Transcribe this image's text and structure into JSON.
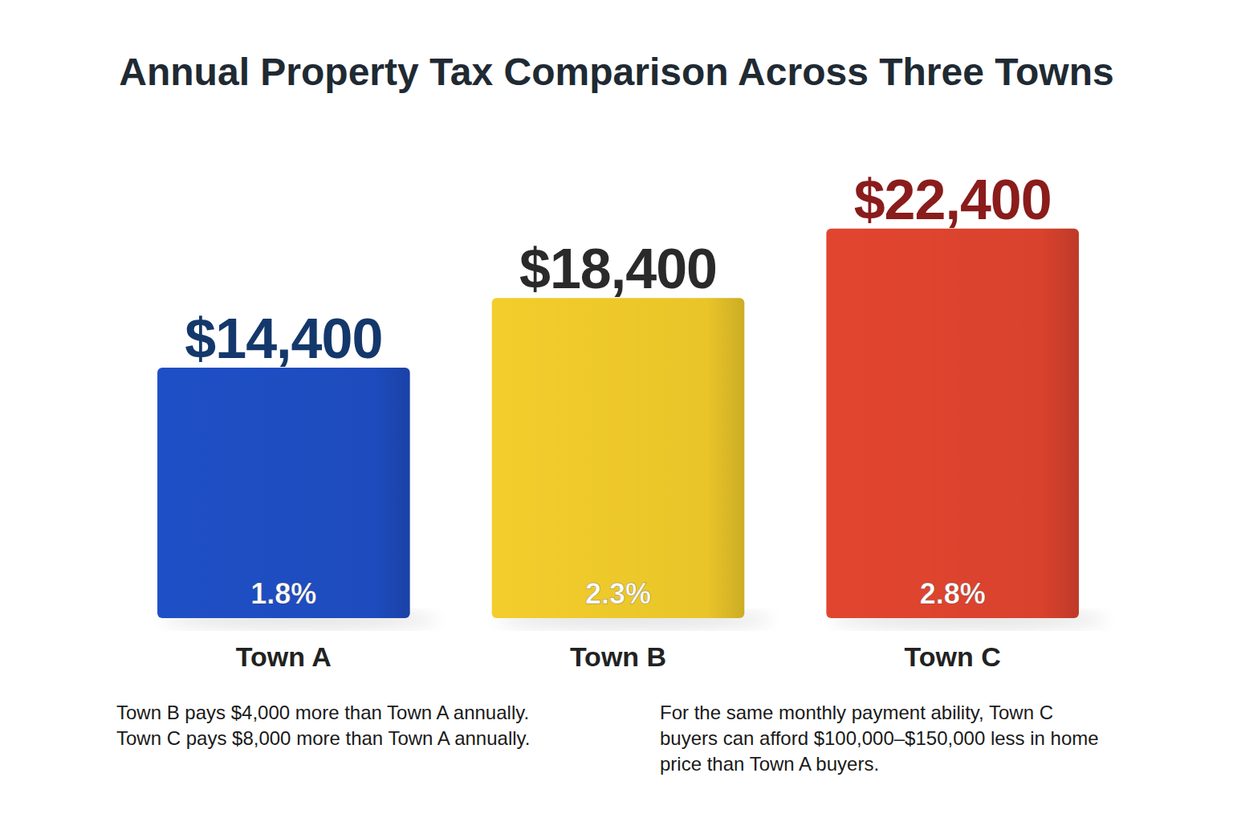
{
  "chart_data": {
    "type": "bar",
    "title": "Annual Property Tax Comparison Across Three Towns",
    "categories": [
      "Town A",
      "Town B",
      "Town C"
    ],
    "values": [
      14400,
      18400,
      22400
    ],
    "value_labels": [
      "$14,400",
      "$18,400",
      "$22,400"
    ],
    "rate_labels": [
      "1.8%",
      "2.3%",
      "2.8%"
    ],
    "colors": [
      "#1f4fc6",
      "#f3cd2b",
      "#e2452f"
    ],
    "ylim": [
      0,
      24000
    ],
    "tick_labels": false,
    "grid": false,
    "data_labels": true,
    "annotations": [
      "Town B pays $4,000 more than Town A annually.",
      "Town C pays $8,000 more than Town A annually.",
      "For the same monthly payment ability, Town C buyers can afford $100,000–$150,000 less in home price than Town A buyers."
    ]
  }
}
